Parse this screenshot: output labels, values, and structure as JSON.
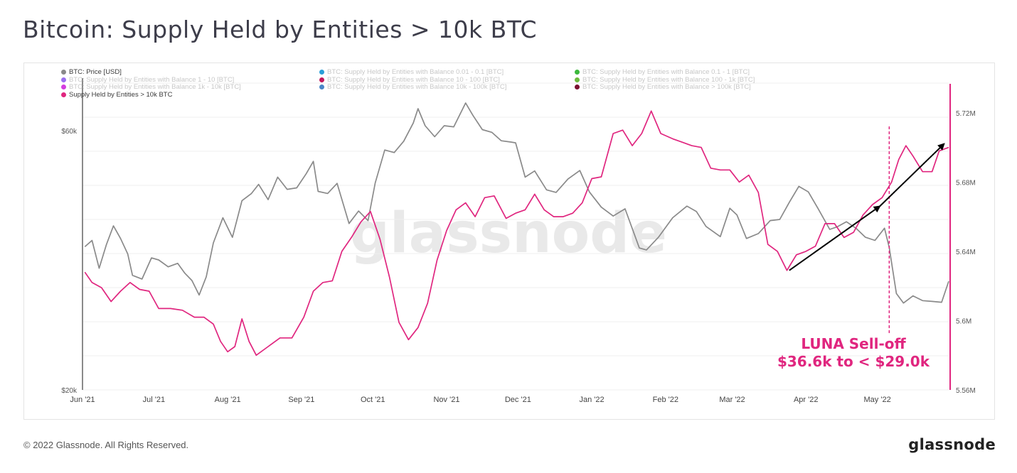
{
  "title": "Bitcoin: Supply Held by Entities > 10k BTC",
  "footer": {
    "copyright": "© 2022 Glassnode. All Rights Reserved.",
    "logo": "glassnode"
  },
  "watermark": "glassnode",
  "legend": [
    {
      "label": "BTC: Price [USD]",
      "color": "#8a8a8a",
      "active": true
    },
    {
      "label": "BTC: Supply Held by Entities with Balance 0.01 - 0.1 [BTC]",
      "color": "#2a9fd8",
      "active": false
    },
    {
      "label": "BTC: Supply Held by Entities with Balance 0.1 - 1 [BTC]",
      "color": "#3cb83c",
      "active": false
    },
    {
      "label": "BTC: Supply Held by Entities with Balance 1 - 10 [BTC]",
      "color": "#9b6ef0",
      "active": false
    },
    {
      "label": "BTC: Supply Held by Entities with Balance 10 - 100 [BTC]",
      "color": "#c2185b",
      "active": false
    },
    {
      "label": "BTC: Supply Held by Entities with Balance 100 - 1k [BTC]",
      "color": "#6dbb3d",
      "active": false
    },
    {
      "label": "BTC: Supply Held by Entities with Balance 1k - 10k [BTC]",
      "color": "#d43de0",
      "active": false
    },
    {
      "label": "BTC: Supply Held by Entities with Balance 10k - 100k [BTC]",
      "color": "#4a86c8",
      "active": false
    },
    {
      "label": "BTC: Supply Held by Entities with Balance > 100k [BTC]",
      "color": "#7a1030",
      "active": false
    },
    {
      "label": "Supply Held by Entities > 10k BTC",
      "color": "#e0267f",
      "active": true
    }
  ],
  "annotation": {
    "line1": "LUNA Sell-off",
    "line2": "$36.6k to < $29.0k",
    "date": "2022-05-06",
    "color": "#e0267f"
  },
  "chart_data": {
    "type": "line",
    "x_axis": {
      "type": "date",
      "range": [
        "2021-06-01",
        "2022-05-31"
      ],
      "tick_labels": [
        "Jun '21",
        "Jul '21",
        "Aug '21",
        "Sep '21",
        "Oct '21",
        "Nov '21",
        "Dec '21",
        "Jan '22",
        "Feb '22",
        "Mar '22",
        "Apr '22",
        "May '22"
      ],
      "tick_dates": [
        "2021-06-01",
        "2021-07-01",
        "2021-08-01",
        "2021-09-01",
        "2021-10-01",
        "2021-11-01",
        "2021-12-01",
        "2022-01-01",
        "2022-02-01",
        "2022-03-01",
        "2022-04-01",
        "2022-05-01"
      ]
    },
    "y_left": {
      "scale": "log",
      "range": [
        20000,
        75000
      ],
      "tick_labels": [
        "$20k",
        "$60k"
      ],
      "tick_values": [
        20000,
        60000
      ]
    },
    "y_right": {
      "scale": "linear",
      "range": [
        5560000,
        5740000
      ],
      "tick_labels": [
        "5.56M",
        "5.6M",
        "5.64M",
        "5.68M",
        "5.72M"
      ],
      "tick_values": [
        5560000,
        5600000,
        5640000,
        5680000,
        5720000
      ]
    },
    "grid": true,
    "series": [
      {
        "name": "BTC: Price [USD]",
        "axis": "left",
        "color": "#8a8a8a",
        "points": [
          [
            "2021-06-02",
            36700
          ],
          [
            "2021-06-05",
            37700
          ],
          [
            "2021-06-08",
            33500
          ],
          [
            "2021-06-11",
            37000
          ],
          [
            "2021-06-14",
            40100
          ],
          [
            "2021-06-17",
            38000
          ],
          [
            "2021-06-20",
            35600
          ],
          [
            "2021-06-22",
            32500
          ],
          [
            "2021-06-26",
            32000
          ],
          [
            "2021-06-30",
            35000
          ],
          [
            "2021-07-03",
            34700
          ],
          [
            "2021-07-07",
            33700
          ],
          [
            "2021-07-11",
            34200
          ],
          [
            "2021-07-14",
            32800
          ],
          [
            "2021-07-17",
            31800
          ],
          [
            "2021-07-20",
            29900
          ],
          [
            "2021-07-23",
            32300
          ],
          [
            "2021-07-26",
            37300
          ],
          [
            "2021-07-30",
            41500
          ],
          [
            "2021-08-03",
            38200
          ],
          [
            "2021-08-07",
            44600
          ],
          [
            "2021-08-11",
            46000
          ],
          [
            "2021-08-14",
            47800
          ],
          [
            "2021-08-18",
            44800
          ],
          [
            "2021-08-22",
            49300
          ],
          [
            "2021-08-26",
            46800
          ],
          [
            "2021-08-30",
            47100
          ],
          [
            "2021-09-03",
            50000
          ],
          [
            "2021-09-06",
            52700
          ],
          [
            "2021-09-08",
            46400
          ],
          [
            "2021-09-12",
            46000
          ],
          [
            "2021-09-16",
            48000
          ],
          [
            "2021-09-21",
            40500
          ],
          [
            "2021-09-25",
            42700
          ],
          [
            "2021-09-29",
            41000
          ],
          [
            "2021-10-02",
            48100
          ],
          [
            "2021-10-06",
            55300
          ],
          [
            "2021-10-10",
            54700
          ],
          [
            "2021-10-14",
            57400
          ],
          [
            "2021-10-18",
            62000
          ],
          [
            "2021-10-20",
            65900
          ],
          [
            "2021-10-23",
            61300
          ],
          [
            "2021-10-27",
            58500
          ],
          [
            "2021-10-31",
            61300
          ],
          [
            "2021-11-04",
            61000
          ],
          [
            "2021-11-09",
            67500
          ],
          [
            "2021-11-12",
            64100
          ],
          [
            "2021-11-16",
            60300
          ],
          [
            "2021-11-20",
            59600
          ],
          [
            "2021-11-24",
            57500
          ],
          [
            "2021-11-28",
            57200
          ],
          [
            "2021-11-30",
            57000
          ],
          [
            "2021-12-04",
            49300
          ],
          [
            "2021-12-08",
            50600
          ],
          [
            "2021-12-13",
            46700
          ],
          [
            "2021-12-17",
            46200
          ],
          [
            "2021-12-22",
            48900
          ],
          [
            "2021-12-27",
            50700
          ],
          [
            "2021-12-31",
            46300
          ],
          [
            "2022-01-05",
            43400
          ],
          [
            "2022-01-10",
            41800
          ],
          [
            "2022-01-15",
            43100
          ],
          [
            "2022-01-21",
            36500
          ],
          [
            "2022-01-24",
            36200
          ],
          [
            "2022-01-29",
            38200
          ],
          [
            "2022-02-04",
            41500
          ],
          [
            "2022-02-10",
            43600
          ],
          [
            "2022-02-14",
            42600
          ],
          [
            "2022-02-18",
            40000
          ],
          [
            "2022-02-24",
            38300
          ],
          [
            "2022-02-28",
            43200
          ],
          [
            "2022-03-03",
            42000
          ],
          [
            "2022-03-07",
            38000
          ],
          [
            "2022-03-12",
            38800
          ],
          [
            "2022-03-17",
            41000
          ],
          [
            "2022-03-21",
            41200
          ],
          [
            "2022-03-25",
            44300
          ],
          [
            "2022-03-29",
            47400
          ],
          [
            "2022-04-02",
            46300
          ],
          [
            "2022-04-06",
            43200
          ],
          [
            "2022-04-11",
            39500
          ],
          [
            "2022-04-14",
            39900
          ],
          [
            "2022-04-18",
            40800
          ],
          [
            "2022-04-22",
            39700
          ],
          [
            "2022-04-26",
            38200
          ],
          [
            "2022-04-30",
            37700
          ],
          [
            "2022-05-04",
            39700
          ],
          [
            "2022-05-06",
            36600
          ],
          [
            "2022-05-09",
            30100
          ],
          [
            "2022-05-12",
            28900
          ],
          [
            "2022-05-16",
            29800
          ],
          [
            "2022-05-20",
            29200
          ],
          [
            "2022-05-24",
            29100
          ],
          [
            "2022-05-28",
            29000
          ],
          [
            "2022-05-31",
            31700
          ]
        ]
      },
      {
        "name": "Supply Held by Entities > 10k BTC",
        "axis": "right",
        "color": "#e0267f",
        "points": [
          [
            "2021-06-02",
            5628000
          ],
          [
            "2021-06-05",
            5622000
          ],
          [
            "2021-06-09",
            5619000
          ],
          [
            "2021-06-13",
            5611000
          ],
          [
            "2021-06-17",
            5617000
          ],
          [
            "2021-06-21",
            5622000
          ],
          [
            "2021-06-25",
            5618000
          ],
          [
            "2021-06-29",
            5617000
          ],
          [
            "2021-07-03",
            5607000
          ],
          [
            "2021-07-08",
            5607000
          ],
          [
            "2021-07-13",
            5606000
          ],
          [
            "2021-07-18",
            5602000
          ],
          [
            "2021-07-22",
            5602000
          ],
          [
            "2021-07-26",
            5598000
          ],
          [
            "2021-07-29",
            5588000
          ],
          [
            "2021-08-01",
            5582000
          ],
          [
            "2021-08-04",
            5585000
          ],
          [
            "2021-08-07",
            5601000
          ],
          [
            "2021-08-10",
            5588000
          ],
          [
            "2021-08-13",
            5580000
          ],
          [
            "2021-08-18",
            5585000
          ],
          [
            "2021-08-23",
            5590000
          ],
          [
            "2021-08-28",
            5590000
          ],
          [
            "2021-09-02",
            5602000
          ],
          [
            "2021-09-06",
            5617000
          ],
          [
            "2021-09-10",
            5622000
          ],
          [
            "2021-09-14",
            5623000
          ],
          [
            "2021-09-18",
            5640000
          ],
          [
            "2021-09-22",
            5648000
          ],
          [
            "2021-09-26",
            5657000
          ],
          [
            "2021-09-30",
            5663000
          ],
          [
            "2021-10-04",
            5647000
          ],
          [
            "2021-10-08",
            5625000
          ],
          [
            "2021-10-12",
            5599000
          ],
          [
            "2021-10-16",
            5589000
          ],
          [
            "2021-10-20",
            5596000
          ],
          [
            "2021-10-24",
            5610000
          ],
          [
            "2021-10-28",
            5635000
          ],
          [
            "2021-11-01",
            5652000
          ],
          [
            "2021-11-05",
            5664000
          ],
          [
            "2021-11-09",
            5668000
          ],
          [
            "2021-11-13",
            5660000
          ],
          [
            "2021-11-17",
            5671000
          ],
          [
            "2021-11-21",
            5672000
          ],
          [
            "2021-11-26",
            5659000
          ],
          [
            "2021-11-30",
            5662000
          ],
          [
            "2021-12-04",
            5664000
          ],
          [
            "2021-12-08",
            5673000
          ],
          [
            "2021-12-12",
            5664000
          ],
          [
            "2021-12-16",
            5660000
          ],
          [
            "2021-12-20",
            5660000
          ],
          [
            "2021-12-24",
            5662000
          ],
          [
            "2021-12-28",
            5668000
          ],
          [
            "2022-01-01",
            5682000
          ],
          [
            "2022-01-05",
            5683000
          ],
          [
            "2022-01-10",
            5708000
          ],
          [
            "2022-01-14",
            5710000
          ],
          [
            "2022-01-18",
            5701000
          ],
          [
            "2022-01-22",
            5708000
          ],
          [
            "2022-01-26",
            5721000
          ],
          [
            "2022-01-30",
            5708000
          ],
          [
            "2022-02-04",
            5705000
          ],
          [
            "2022-02-08",
            5703000
          ],
          [
            "2022-02-12",
            5701000
          ],
          [
            "2022-02-16",
            5700000
          ],
          [
            "2022-02-20",
            5688000
          ],
          [
            "2022-02-24",
            5687000
          ],
          [
            "2022-02-28",
            5687000
          ],
          [
            "2022-03-04",
            5680000
          ],
          [
            "2022-03-08",
            5684000
          ],
          [
            "2022-03-12",
            5674000
          ],
          [
            "2022-03-16",
            5644000
          ],
          [
            "2022-03-20",
            5640000
          ],
          [
            "2022-03-24",
            5629000
          ],
          [
            "2022-03-28",
            5638000
          ],
          [
            "2022-04-01",
            5640000
          ],
          [
            "2022-04-05",
            5643000
          ],
          [
            "2022-04-09",
            5656000
          ],
          [
            "2022-04-13",
            5656000
          ],
          [
            "2022-04-17",
            5648000
          ],
          [
            "2022-04-21",
            5651000
          ],
          [
            "2022-04-25",
            5661000
          ],
          [
            "2022-04-29",
            5667000
          ],
          [
            "2022-05-03",
            5671000
          ],
          [
            "2022-05-07",
            5680000
          ],
          [
            "2022-05-10",
            5693000
          ],
          [
            "2022-05-13",
            5701000
          ],
          [
            "2022-05-16",
            5695000
          ],
          [
            "2022-05-20",
            5686000
          ],
          [
            "2022-05-24",
            5686000
          ],
          [
            "2022-05-27",
            5698000
          ],
          [
            "2022-05-31",
            5700000
          ]
        ]
      }
    ],
    "trend_arrows": [
      {
        "from": [
          "2022-03-25",
          5629000
        ],
        "to": [
          "2022-05-02",
          5666000
        ],
        "color": "#000000"
      },
      {
        "from": [
          "2022-05-02",
          5666000
        ],
        "to": [
          "2022-05-29",
          5702000
        ],
        "color": "#000000"
      }
    ]
  }
}
